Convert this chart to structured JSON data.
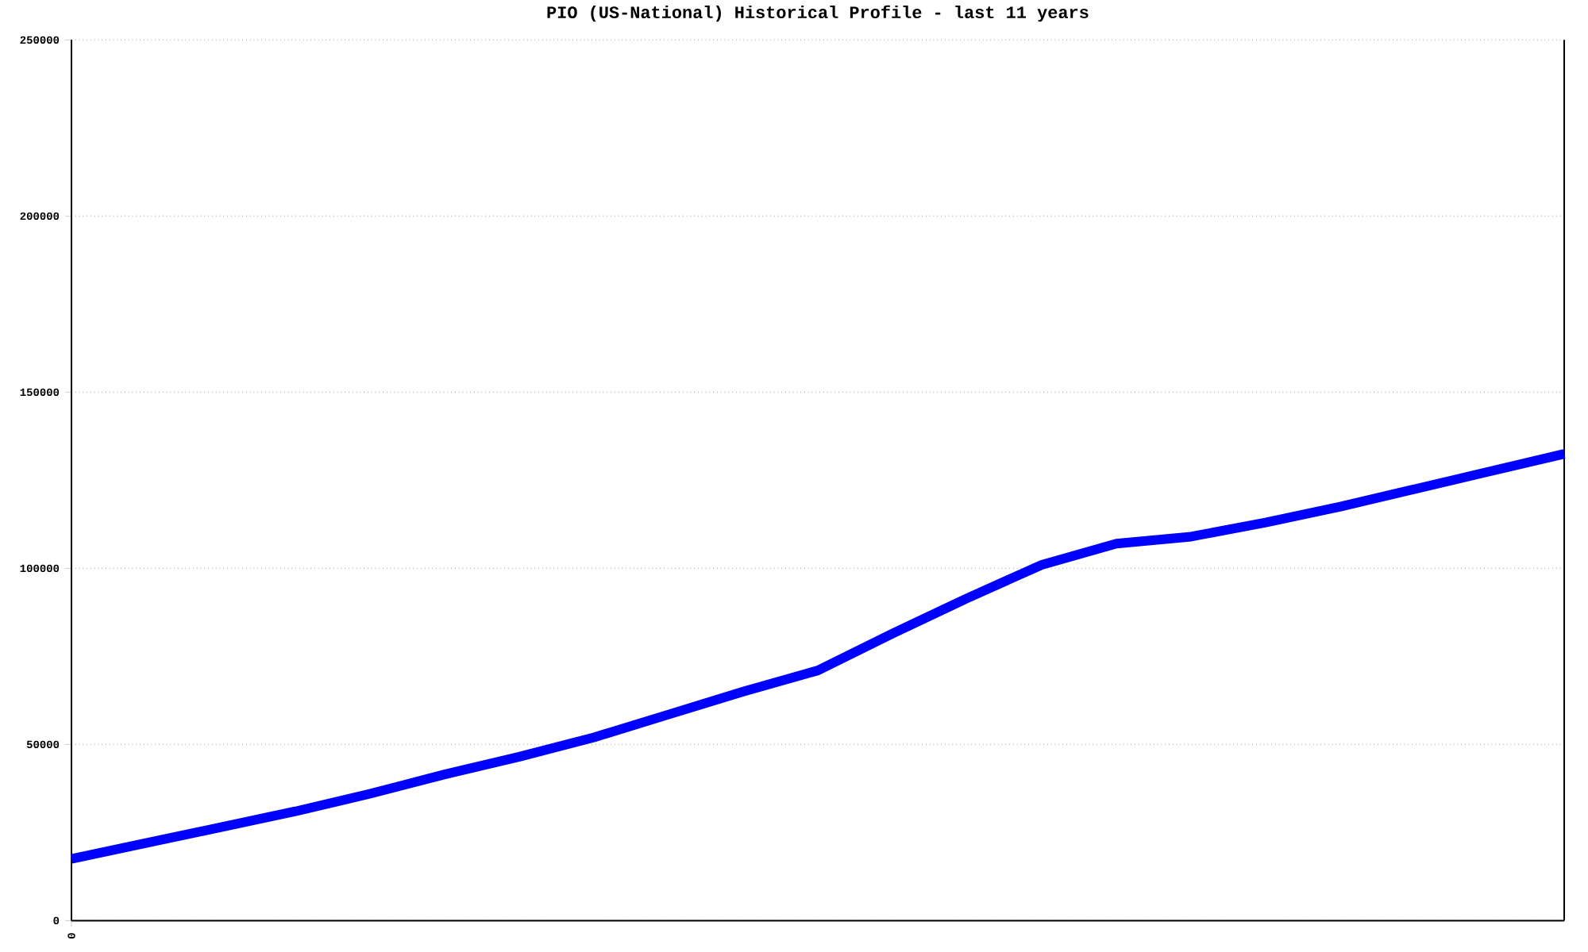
{
  "chart_data": {
    "type": "line",
    "title": "PIO (US-National) Historical Profile - last 11 years",
    "categories": [
      "0",
      null,
      null,
      null,
      null,
      null,
      null,
      null,
      null,
      null,
      null,
      null,
      null,
      null,
      null,
      null,
      null,
      null,
      null,
      null,
      null
    ],
    "values": [
      17500,
      22000,
      26500,
      31000,
      36000,
      41500,
      46500,
      52000,
      58500,
      65000,
      71000,
      81500,
      91500,
      101000,
      107000,
      109000,
      113000,
      117500,
      122500,
      127500,
      132500
    ],
    "color": "#0000ff",
    "ylim": [
      0,
      250000
    ],
    "yticks": [
      0,
      50000,
      100000,
      150000,
      200000,
      250000
    ],
    "grid": "y"
  }
}
